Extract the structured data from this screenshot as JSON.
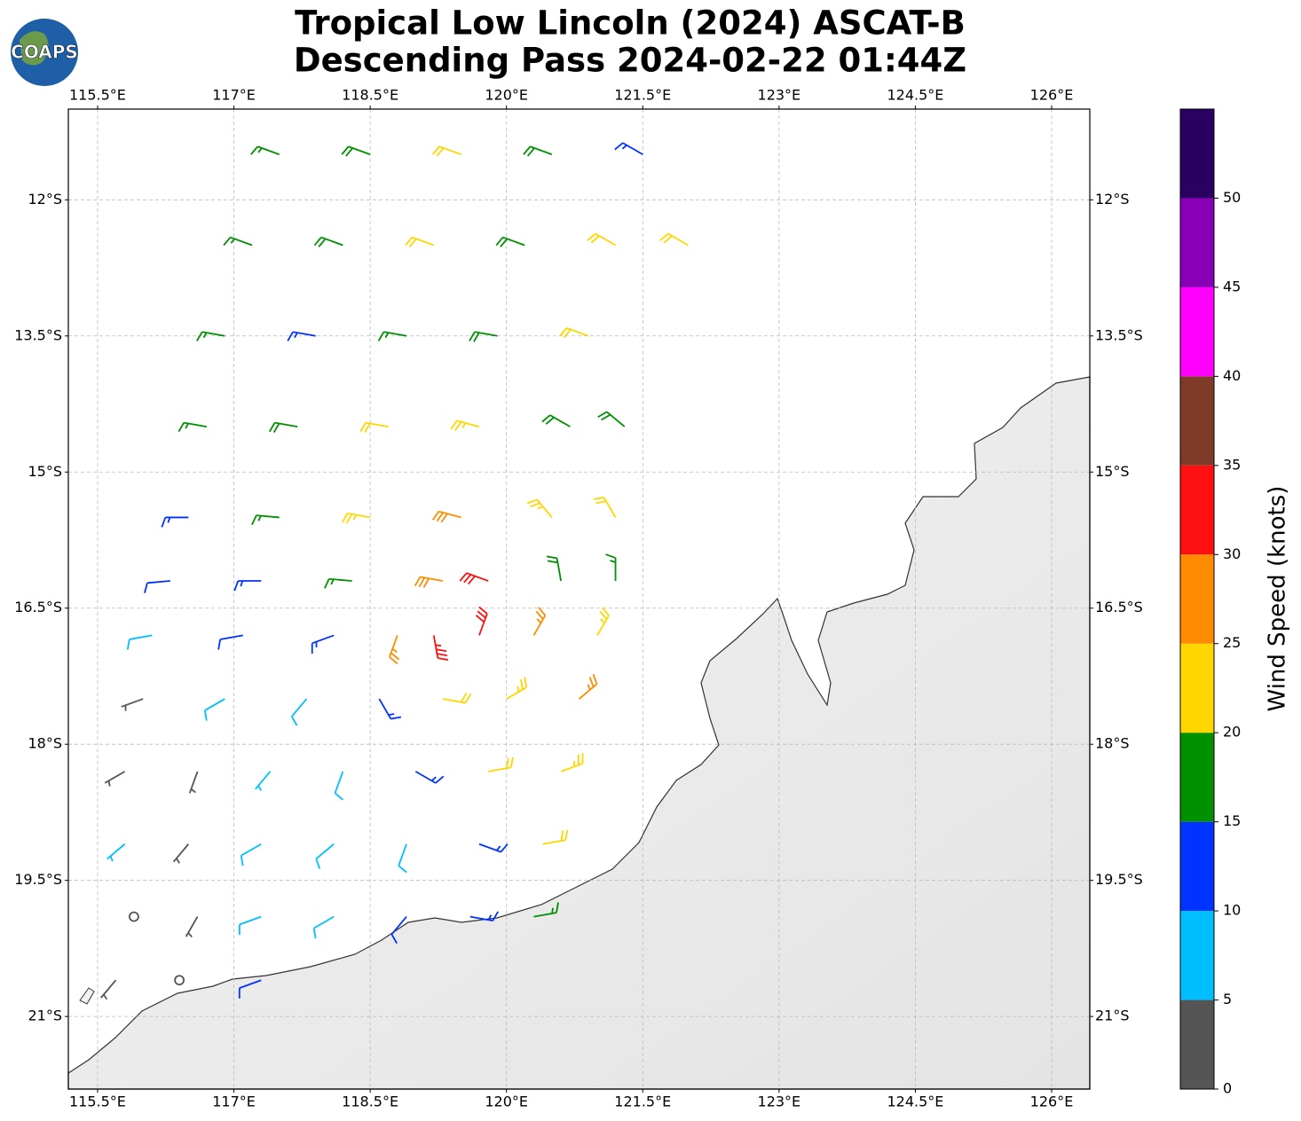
{
  "chart_data": {
    "type": "barbs",
    "title": "Tropical Low Lincoln (2024) ASCAT-B",
    "subtitle": "Descending Pass 2024-02-22 01:44Z",
    "logo": "COAPS",
    "xlim": [
      115.178,
      126.42
    ],
    "ylim": [
      -21.8,
      -11.0
    ],
    "grid": true,
    "xticks": [
      {
        "value": 115.5,
        "label": "115.5°E"
      },
      {
        "value": 117,
        "label": "117°E"
      },
      {
        "value": 118.5,
        "label": "118.5°E"
      },
      {
        "value": 120,
        "label": "120°E"
      },
      {
        "value": 121.5,
        "label": "121.5°E"
      },
      {
        "value": 123,
        "label": "123°E"
      },
      {
        "value": 124.5,
        "label": "124.5°E"
      },
      {
        "value": 126,
        "label": "126°E"
      }
    ],
    "yticks": [
      {
        "value": -12,
        "label": "12°S"
      },
      {
        "value": -13.5,
        "label": "13.5°S"
      },
      {
        "value": -15,
        "label": "15°S"
      },
      {
        "value": -16.5,
        "label": "16.5°S"
      },
      {
        "value": -18,
        "label": "18°S"
      },
      {
        "value": -19.5,
        "label": "19.5°S"
      },
      {
        "value": -21,
        "label": "21°S"
      }
    ],
    "points": [
      [
        117.5,
        -11.5,
        17,
        290
      ],
      [
        118.5,
        -11.5,
        18,
        290
      ],
      [
        119.5,
        -11.5,
        22,
        290
      ],
      [
        120.5,
        -11.5,
        18,
        290
      ],
      [
        121.5,
        -11.5,
        13,
        300
      ],
      [
        117.2,
        -12.5,
        17,
        290
      ],
      [
        118.2,
        -12.5,
        18,
        290
      ],
      [
        119.2,
        -12.5,
        21,
        290
      ],
      [
        120.2,
        -12.5,
        19,
        290
      ],
      [
        121.2,
        -12.5,
        21,
        300
      ],
      [
        122.0,
        -12.5,
        22,
        300
      ],
      [
        116.9,
        -13.5,
        17,
        280
      ],
      [
        117.9,
        -13.5,
        14,
        280
      ],
      [
        118.9,
        -13.5,
        17,
        280
      ],
      [
        119.9,
        -13.5,
        18,
        280
      ],
      [
        120.9,
        -13.5,
        21,
        290
      ],
      [
        116.7,
        -14.5,
        16,
        280
      ],
      [
        117.7,
        -14.5,
        18,
        280
      ],
      [
        118.7,
        -14.5,
        22,
        280
      ],
      [
        119.7,
        -14.5,
        23,
        285
      ],
      [
        120.7,
        -14.5,
        19,
        300
      ],
      [
        121.3,
        -14.5,
        18,
        310
      ],
      [
        116.5,
        -15.5,
        13,
        270
      ],
      [
        117.5,
        -15.5,
        17,
        275
      ],
      [
        118.5,
        -15.5,
        24,
        280
      ],
      [
        119.5,
        -15.5,
        28,
        285
      ],
      [
        120.5,
        -15.5,
        24,
        320
      ],
      [
        121.2,
        -15.5,
        22,
        330
      ],
      [
        116.3,
        -16.2,
        12,
        265
      ],
      [
        117.3,
        -16.2,
        14,
        270
      ],
      [
        118.3,
        -16.2,
        17,
        275
      ],
      [
        119.3,
        -16.2,
        28,
        280
      ],
      [
        119.8,
        -16.2,
        32,
        290
      ],
      [
        120.6,
        -16.2,
        18,
        350
      ],
      [
        121.2,
        -16.2,
        17,
        0
      ],
      [
        116.1,
        -16.8,
        9,
        260
      ],
      [
        117.1,
        -16.8,
        12,
        260
      ],
      [
        118.1,
        -16.8,
        14,
        250
      ],
      [
        118.8,
        -16.8,
        27,
        200
      ],
      [
        119.2,
        -16.8,
        33,
        170
      ],
      [
        119.7,
        -16.8,
        32,
        20
      ],
      [
        120.3,
        -16.8,
        27,
        30
      ],
      [
        121.0,
        -16.8,
        23,
        30
      ],
      [
        116.0,
        -17.5,
        3,
        250
      ],
      [
        116.9,
        -17.5,
        8,
        240
      ],
      [
        117.8,
        -17.5,
        9,
        220
      ],
      [
        118.6,
        -17.5,
        13,
        150
      ],
      [
        119.3,
        -17.5,
        22,
        100
      ],
      [
        120.0,
        -17.5,
        24,
        60
      ],
      [
        120.8,
        -17.5,
        27,
        50
      ],
      [
        115.8,
        -18.3,
        4,
        240
      ],
      [
        116.6,
        -18.3,
        3,
        200
      ],
      [
        117.4,
        -18.3,
        7,
        220
      ],
      [
        118.2,
        -18.3,
        9,
        200
      ],
      [
        119.0,
        -18.3,
        14,
        120
      ],
      [
        119.8,
        -18.3,
        22,
        80
      ],
      [
        120.6,
        -18.3,
        23,
        70
      ],
      [
        115.8,
        -19.1,
        6,
        230
      ],
      [
        116.5,
        -19.1,
        4,
        220
      ],
      [
        117.3,
        -19.1,
        8,
        240
      ],
      [
        118.1,
        -19.1,
        8,
        230
      ],
      [
        118.9,
        -19.1,
        9,
        200
      ],
      [
        119.7,
        -19.1,
        13,
        110
      ],
      [
        120.4,
        -19.1,
        22,
        80
      ],
      [
        115.9,
        -19.9,
        2,
        200
      ],
      [
        116.6,
        -19.9,
        3,
        210
      ],
      [
        117.3,
        -19.9,
        8,
        250
      ],
      [
        118.1,
        -19.9,
        8,
        240
      ],
      [
        118.9,
        -19.9,
        12,
        220
      ],
      [
        119.6,
        -19.9,
        13,
        100
      ],
      [
        120.3,
        -19.9,
        17,
        80
      ],
      [
        115.7,
        -20.6,
        3,
        220
      ],
      [
        116.4,
        -20.6,
        2,
        210
      ],
      [
        117.3,
        -20.6,
        11,
        250
      ]
    ],
    "colorbar": {
      "label": "Wind Speed (knots)",
      "lim": [
        0,
        55
      ],
      "ticks": [
        0,
        5,
        10,
        15,
        20,
        25,
        30,
        35,
        40,
        45,
        50
      ],
      "colors": [
        "#555555",
        "#00bfff",
        "#0033ff",
        "#009000",
        "#ffd700",
        "#ff8c00",
        "#ff1010",
        "#803a28",
        "#ff00ff",
        "#8a00b8",
        "#2a0060"
      ]
    }
  }
}
